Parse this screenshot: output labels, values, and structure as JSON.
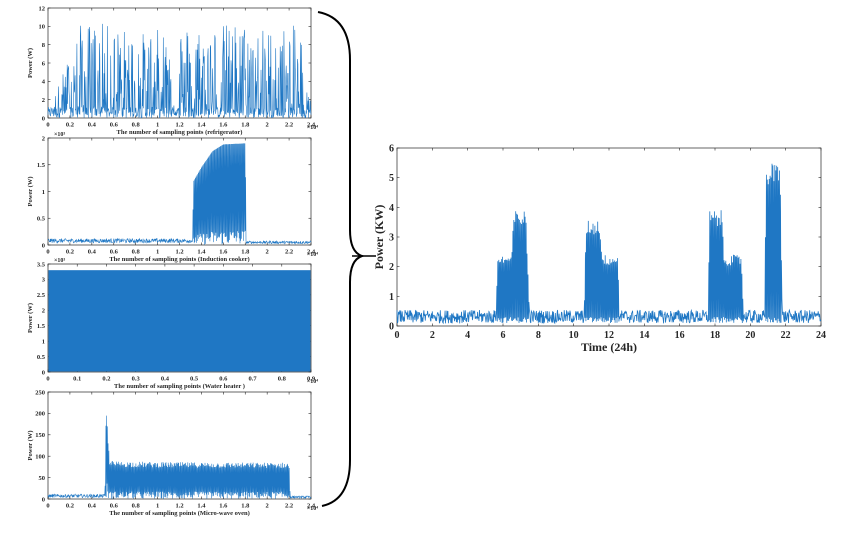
{
  "chart_data": [
    {
      "id": "refrigerator",
      "type": "line",
      "xlabel": "The number of sampling points (refrigerator)",
      "ylabel": "Power (W)",
      "xlim": [
        0,
        2.4
      ],
      "ylim": [
        0,
        12
      ],
      "xticks": [
        "0",
        "0.2",
        "0.4",
        "0.6",
        "0.8",
        "1",
        "1.2",
        "1.4",
        "1.6",
        "1.8",
        "2",
        "2.2",
        "2.4"
      ],
      "yticks": [
        "0",
        "2",
        "4",
        "6",
        "8",
        "10",
        "12"
      ],
      "x_multiplier": "×10⁴",
      "y_multiplier": "",
      "series": [
        {
          "color": "#1f77c4",
          "description_points": [
            [
              0,
              0.5
            ],
            [
              0.3,
              10.3
            ],
            [
              0.45,
              10.5
            ],
            [
              0.85,
              9.3
            ],
            [
              1.2,
              10.2
            ],
            [
              1.4,
              10.1
            ],
            [
              1.75,
              10.5
            ],
            [
              2.0,
              9.8
            ],
            [
              2.3,
              10.2
            ],
            [
              2.4,
              1.5
            ]
          ]
        }
      ]
    },
    {
      "id": "induction-cooker",
      "type": "line",
      "xlabel": "The number of sampling points (Induction cooker)",
      "ylabel": "Power (W)",
      "xlim": [
        0,
        2.4
      ],
      "ylim": [
        0,
        2
      ],
      "xticks": [
        "0",
        "0.2",
        "0.4",
        "0.6",
        "0.8",
        "1",
        "1.2",
        "1.4",
        "1.6",
        "1.8",
        "2",
        "2.2",
        "2.4"
      ],
      "yticks": [
        "0",
        "0.5",
        "1",
        "1.5",
        "2"
      ],
      "x_multiplier": "×10⁴",
      "y_multiplier": "×10³",
      "series": [
        {
          "color": "#1f77c4",
          "description_points": [
            [
              0,
              0.08
            ],
            [
              1.32,
              0.08
            ],
            [
              1.33,
              1.2
            ],
            [
              1.4,
              1.45
            ],
            [
              1.5,
              1.75
            ],
            [
              1.6,
              1.88
            ],
            [
              1.8,
              1.9
            ],
            [
              1.81,
              0.05
            ],
            [
              2.4,
              0.05
            ]
          ]
        }
      ]
    },
    {
      "id": "water-heater",
      "type": "area",
      "xlabel": "The number of sampling points (Water heater )",
      "ylabel": "Power (W)",
      "xlim": [
        0,
        0.9
      ],
      "ylim": [
        0,
        3.5
      ],
      "xticks": [
        "0",
        "0.1",
        "0.2",
        "0.3",
        "0.4",
        "0.5",
        "0.6",
        "0.7",
        "0.8",
        "0.9"
      ],
      "yticks": [
        "0",
        "0.5",
        "1",
        "1.5",
        "2",
        "2.5",
        "3",
        "3.5"
      ],
      "x_multiplier": "×10⁴",
      "y_multiplier": "×10³",
      "series": [
        {
          "color": "#1f77c4",
          "description_points": [
            [
              0,
              3.3
            ],
            [
              0.9,
              3.3
            ]
          ]
        }
      ]
    },
    {
      "id": "micro-wave-oven",
      "type": "line",
      "xlabel": "The number of sampling points (Micro-wave oven)",
      "ylabel": "Power (W)",
      "xlim": [
        0,
        2.4
      ],
      "ylim": [
        0,
        250
      ],
      "xticks": [
        "0",
        "0.2",
        "0.4",
        "0.6",
        "0.8",
        "1",
        "1.2",
        "1.4",
        "1.6",
        "1.8",
        "2",
        "2.2",
        "2.4"
      ],
      "yticks": [
        "0",
        "50",
        "100",
        "150",
        "200",
        "250"
      ],
      "x_multiplier": "×10⁴",
      "y_multiplier": "",
      "series": [
        {
          "color": "#1f77c4",
          "description_points": [
            [
              0,
              8
            ],
            [
              0.52,
              8
            ],
            [
              0.53,
              225
            ],
            [
              0.56,
              95
            ],
            [
              0.6,
              88
            ],
            [
              1.2,
              86
            ],
            [
              2.2,
              85
            ],
            [
              2.21,
              5
            ],
            [
              2.4,
              5
            ]
          ]
        }
      ]
    },
    {
      "id": "total-24h",
      "type": "line",
      "xlabel": "Time (24h)",
      "ylabel": "Power (KW)",
      "xlim": [
        0,
        24
      ],
      "ylim": [
        0,
        6
      ],
      "xticks": [
        "0",
        "2",
        "4",
        "6",
        "8",
        "10",
        "12",
        "14",
        "16",
        "18",
        "20",
        "22",
        "24"
      ],
      "yticks": [
        "0",
        "1",
        "2",
        "3",
        "4",
        "5",
        "6"
      ],
      "x_multiplier": "",
      "y_multiplier": "",
      "series": [
        {
          "color": "#1f77c4",
          "description_points": [
            [
              0,
              0.3
            ],
            [
              5.6,
              0.3
            ],
            [
              5.7,
              2.4
            ],
            [
              6.5,
              2.4
            ],
            [
              6.6,
              3.9
            ],
            [
              7.3,
              3.9
            ],
            [
              7.5,
              0.3
            ],
            [
              10.6,
              0.3
            ],
            [
              10.7,
              3.6
            ],
            [
              11.5,
              3.6
            ],
            [
              11.6,
              2.4
            ],
            [
              12.5,
              2.4
            ],
            [
              12.6,
              0.3
            ],
            [
              17.6,
              0.3
            ],
            [
              17.7,
              3.9
            ],
            [
              18.4,
              3.9
            ],
            [
              18.5,
              2.4
            ],
            [
              19.5,
              2.4
            ],
            [
              19.6,
              0.3
            ],
            [
              20.8,
              0.3
            ],
            [
              20.9,
              5.5
            ],
            [
              21.7,
              5.5
            ],
            [
              21.8,
              0.3
            ],
            [
              24,
              0.3
            ]
          ]
        }
      ]
    }
  ]
}
